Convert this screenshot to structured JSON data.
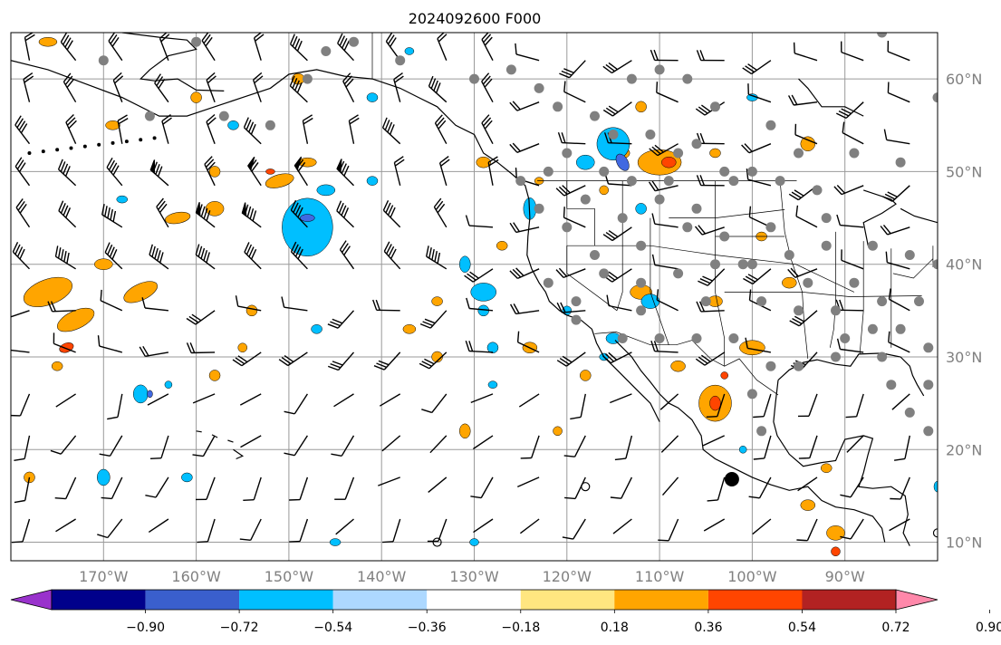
{
  "title": "2024092600 F000",
  "map": {
    "lon_range": [
      -180,
      -80
    ],
    "lat_range": [
      8,
      65
    ],
    "gridlines": true,
    "lat_ticks": [
      {
        "value": 60,
        "label": "60°N"
      },
      {
        "value": 50,
        "label": "50°N"
      },
      {
        "value": 40,
        "label": "40°N"
      },
      {
        "value": 30,
        "label": "30°N"
      },
      {
        "value": 20,
        "label": "20°N"
      },
      {
        "value": 10,
        "label": "10°N"
      }
    ],
    "lon_ticks": [
      {
        "value": -170,
        "label": "170°W"
      },
      {
        "value": -160,
        "label": "160°W"
      },
      {
        "value": -150,
        "label": "150°W"
      },
      {
        "value": -140,
        "label": "140°W"
      },
      {
        "value": -130,
        "label": "130°W"
      },
      {
        "value": -120,
        "label": "120°W"
      },
      {
        "value": -110,
        "label": "110°W"
      },
      {
        "value": -100,
        "label": "100°W"
      },
      {
        "value": -90,
        "label": "90°W"
      }
    ],
    "fill_colors": {
      "positive_low": "#ffe680",
      "positive_mid": "#ffa500",
      "positive_high": "#ff4500",
      "negative_low": "#add8ff",
      "negative_mid": "#00bfff",
      "negative_high": "#4169e1"
    },
    "features": {
      "coastline": "coastline-black",
      "wind_barbs": "black",
      "station_dots": "#808080",
      "storm_marker": "black-circle"
    }
  },
  "colorbar": {
    "colors": [
      "#9932cc",
      "#00008b",
      "#3a5fcd",
      "#00bfff",
      "#add8ff",
      "#ffffff",
      "#ffe680",
      "#ffa500",
      "#ff4500",
      "#b22222",
      "#ff88aa"
    ],
    "tick_labels": [
      "−0.90",
      "−0.72",
      "−0.54",
      "−0.36",
      "−0.18",
      "0.18",
      "0.36",
      "0.54",
      "0.72",
      "0.90"
    ]
  }
}
